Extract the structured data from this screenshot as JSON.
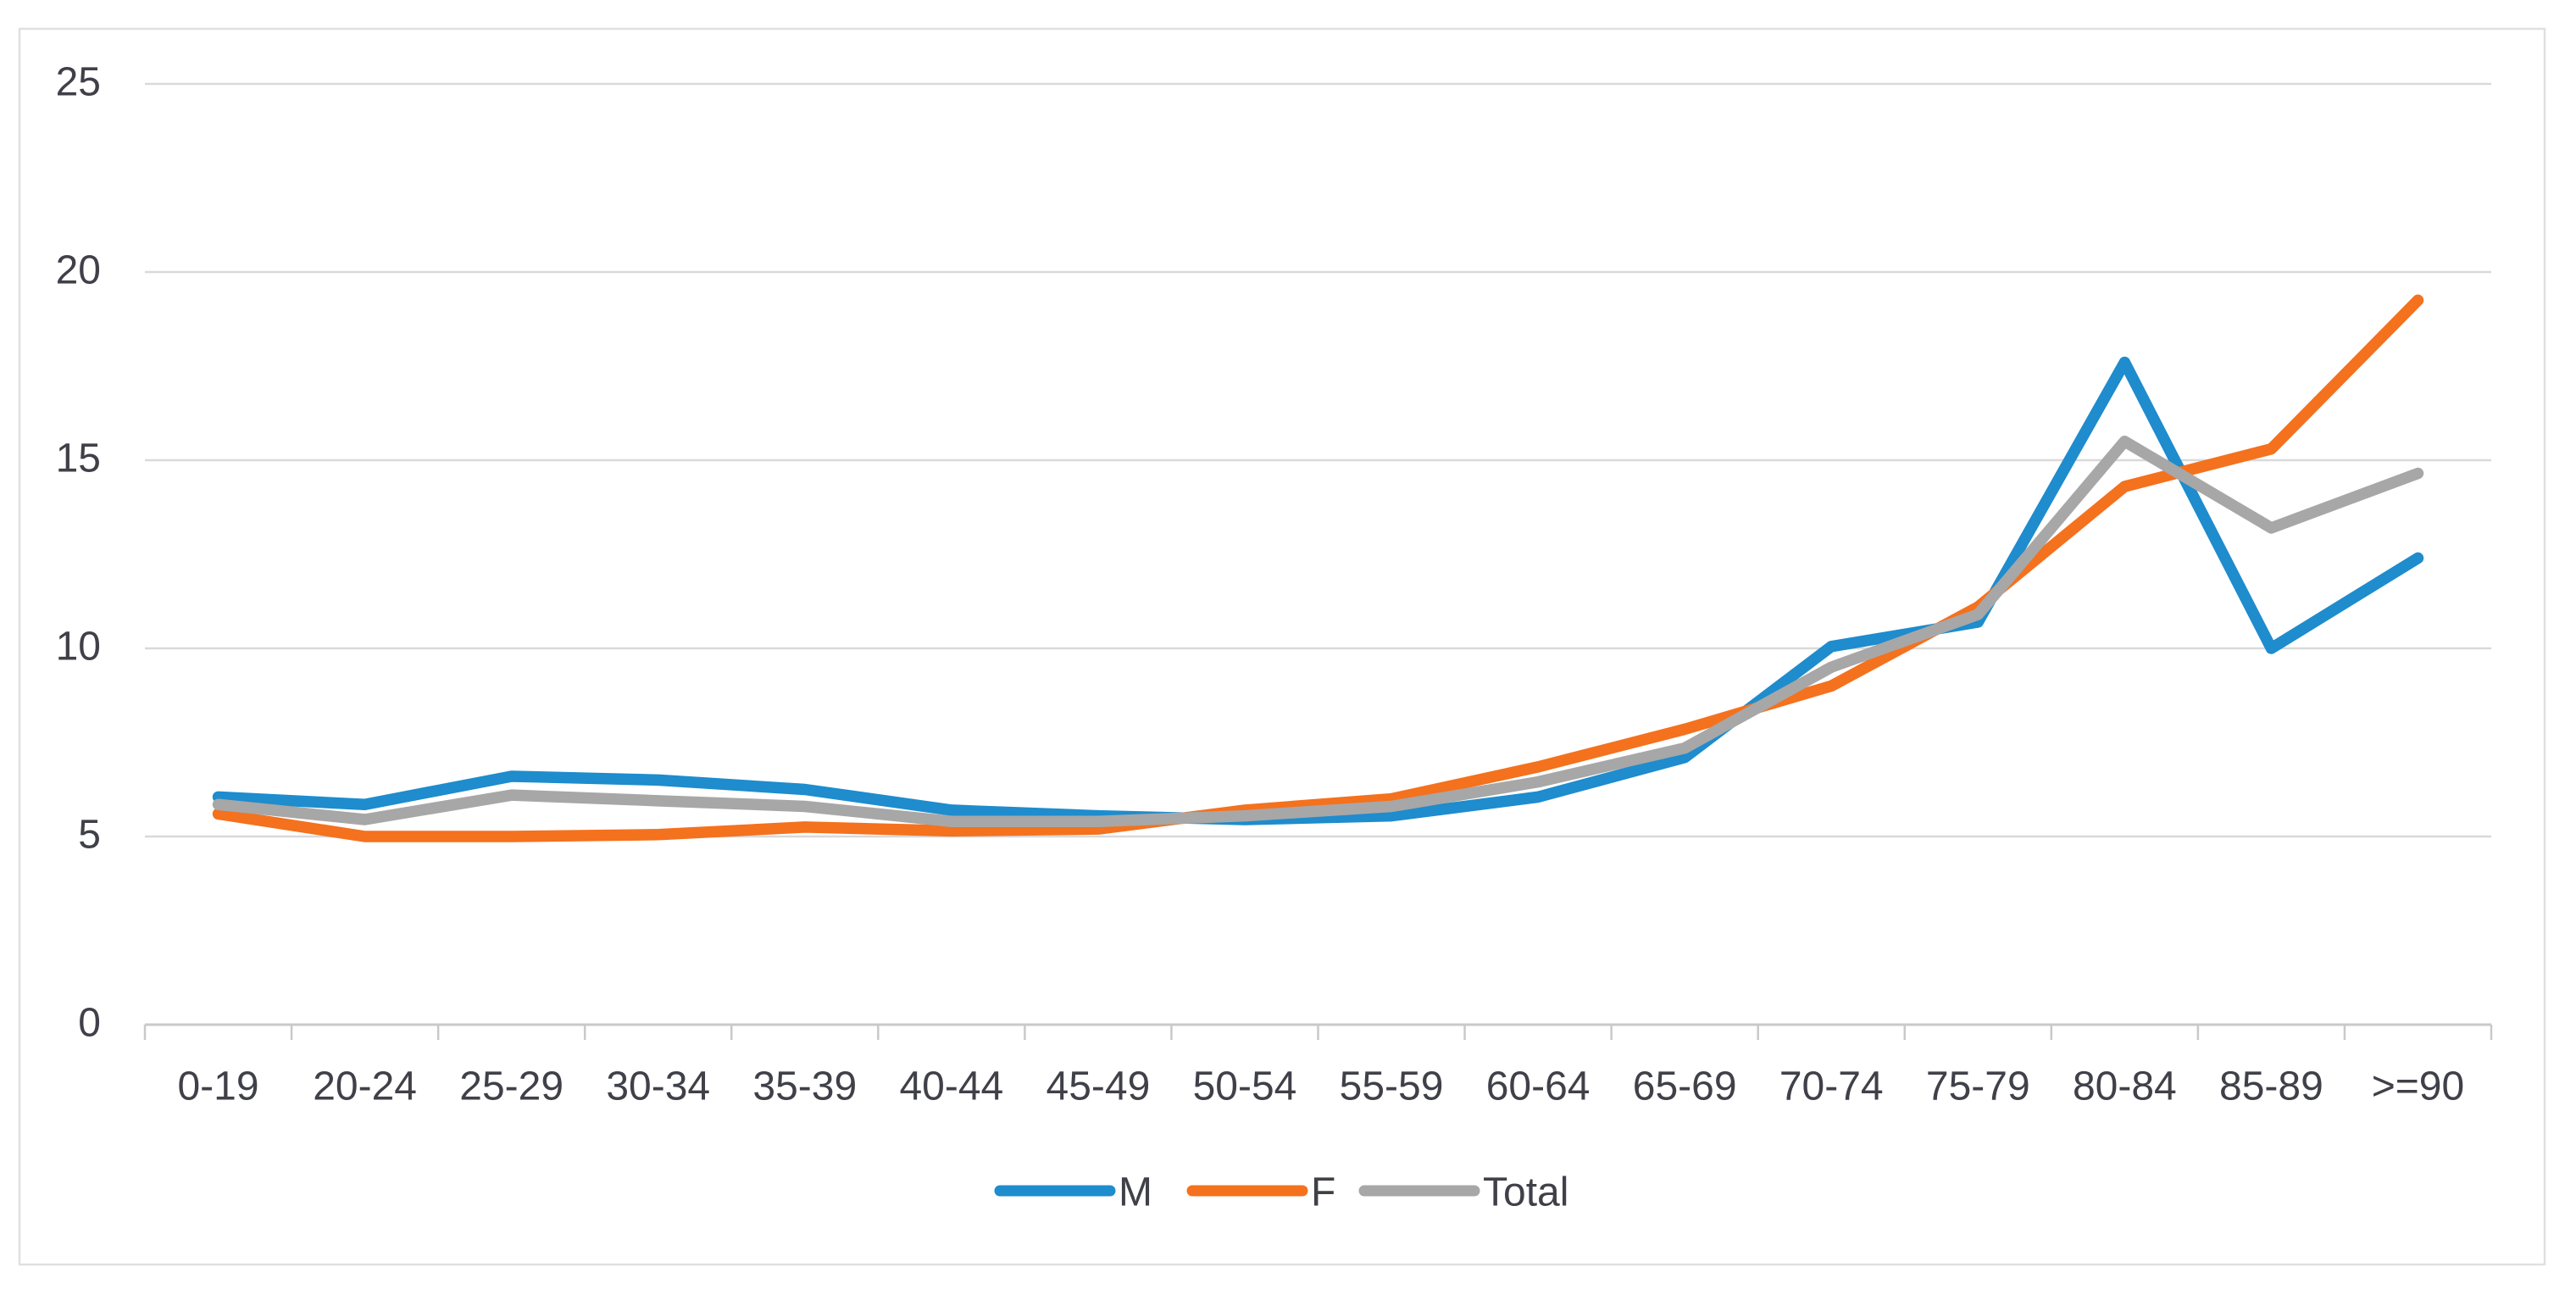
{
  "chart_data": {
    "type": "line",
    "title": "",
    "categories": [
      "0-19",
      "20-24",
      "25-29",
      "30-34",
      "35-39",
      "40-44",
      "45-49",
      "50-54",
      "55-59",
      "60-64",
      "65-69",
      "70-74",
      "75-79",
      "80-84",
      "85-89",
      ">=90"
    ],
    "series": [
      {
        "name": "M",
        "color": "#1E8CCD",
        "values": [
          6.05,
          5.85,
          6.6,
          6.5,
          6.25,
          5.7,
          5.55,
          5.45,
          5.55,
          6.05,
          7.1,
          10.05,
          10.7,
          17.6,
          10.0,
          12.4
        ]
      },
      {
        "name": "F",
        "color": "#F4711E",
        "values": [
          5.6,
          5.0,
          5.0,
          5.05,
          5.25,
          5.15,
          5.2,
          5.7,
          6.0,
          6.85,
          7.85,
          9.0,
          11.1,
          14.3,
          15.3,
          19.25
        ]
      },
      {
        "name": "Total",
        "color": "#A7A7A7",
        "values": [
          5.85,
          5.45,
          6.1,
          5.95,
          5.8,
          5.4,
          5.4,
          5.55,
          5.8,
          6.45,
          7.35,
          9.5,
          10.9,
          15.5,
          13.2,
          14.65
        ]
      }
    ],
    "xlabel": "",
    "ylabel": "",
    "ylim": [
      0,
      25
    ],
    "yticks": [
      0,
      5,
      10,
      15,
      20,
      25
    ],
    "grid": true,
    "legend_position": "bottom-center"
  },
  "colors": {
    "gridline": "#D9D9D9",
    "axis_line": "#C9C9C9",
    "tick_label": "#404049",
    "frame_border": "#E0E0E0",
    "background": "#FFFFFF"
  }
}
